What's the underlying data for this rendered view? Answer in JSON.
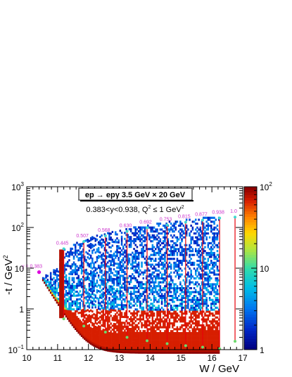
{
  "chart_data": {
    "type": "heatmap",
    "title": "ep → epγ 3.5 GeV × 20 GeV",
    "subtitle": "0.383<y<0.938, Q² ≤ 1 GeV²",
    "subtitle_parts": {
      "range": "0.383<y<0.938, Q",
      "sup1": "2",
      "mid": " ≤ 1 GeV",
      "sup2": "2"
    },
    "xlabel": "W / GeV",
    "ylabel": "-t / GeV",
    "ylabel_sup": "2",
    "xlim": [
      10,
      17
    ],
    "ylim": [
      0.1,
      1000
    ],
    "y_scale": "log",
    "z_scale": "log",
    "zlim": [
      1,
      100
    ],
    "x_ticks": [
      "10",
      "11",
      "12",
      "13",
      "14",
      "15",
      "16",
      "17"
    ],
    "y_ticks": [
      {
        "base": "10",
        "exp": "−1",
        "value": 0.1
      },
      {
        "base": "1",
        "exp": "",
        "value": 1
      },
      {
        "base": "10",
        "exp": "",
        "value": 10
      },
      {
        "base": "10",
        "exp": "2",
        "value": 100
      },
      {
        "base": "10",
        "exp": "3",
        "value": 1000
      }
    ],
    "z_ticks": [
      {
        "base": "1",
        "exp": "",
        "value": 1
      },
      {
        "base": "10",
        "exp": "",
        "value": 10
      },
      {
        "base": "10",
        "exp": "2",
        "value": 100
      }
    ],
    "y_slices": [
      {
        "label": "y = 0.383",
        "W": 10.4,
        "t_min": 8,
        "t_max": 8
      },
      {
        "label": "0.445",
        "W": 11.2,
        "t_min": 0.57,
        "t_max": 30
      },
      {
        "label": "0.507",
        "W": 11.85,
        "t_min": 0.38,
        "t_max": 45
      },
      {
        "label": "0.568",
        "W": 12.55,
        "t_min": 0.27,
        "t_max": 62
      },
      {
        "label": "0.630",
        "W": 13.25,
        "t_min": 0.2,
        "t_max": 80
      },
      {
        "label": "0.692",
        "W": 13.9,
        "t_min": 0.165,
        "t_max": 98
      },
      {
        "label": "0.753",
        "W": 14.55,
        "t_min": 0.14,
        "t_max": 115
      },
      {
        "label": "0.815",
        "W": 15.15,
        "t_min": 0.125,
        "t_max": 135
      },
      {
        "label": "0.877",
        "W": 15.7,
        "t_min": 0.115,
        "t_max": 152
      },
      {
        "label": "0.938",
        "W": 16.25,
        "t_min": 0.105,
        "t_max": 170
      },
      {
        "label": "1.0",
        "W": 16.75,
        "t_min": 0.16,
        "t_max": 180
      }
    ],
    "grid": false,
    "colorbar": "right"
  }
}
